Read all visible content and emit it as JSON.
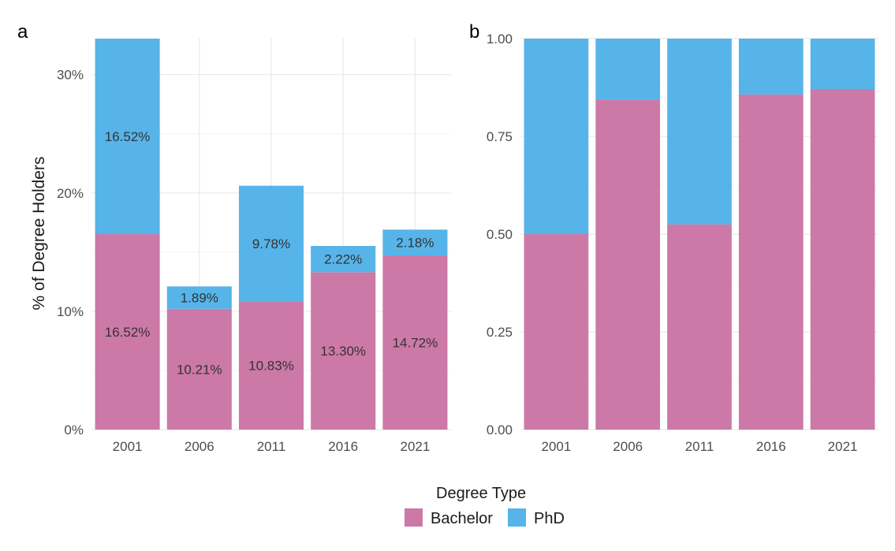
{
  "chart_data": [
    {
      "panel": "a",
      "type": "bar",
      "stacked": true,
      "categories": [
        "2001",
        "2006",
        "2011",
        "2016",
        "2021"
      ],
      "series": [
        {
          "name": "Bachelor",
          "values": [
            16.52,
            10.21,
            10.83,
            13.3,
            14.72
          ],
          "labels": [
            "16.52%",
            "10.21%",
            "10.83%",
            "13.30%",
            "14.72%"
          ]
        },
        {
          "name": "PhD",
          "values": [
            16.52,
            1.89,
            9.78,
            2.22,
            2.18
          ],
          "labels": [
            "16.52%",
            "1.89%",
            "9.78%",
            "2.22%",
            "2.18%"
          ]
        }
      ],
      "ylabel": "% of Degree Holders",
      "ylim": [
        0,
        33.04
      ],
      "yticks": [
        0,
        10,
        20,
        30
      ],
      "ytick_labels": [
        "0%",
        "10%",
        "20%",
        "30%"
      ],
      "grid": true
    },
    {
      "panel": "b",
      "type": "bar",
      "stacked": true,
      "normalized": true,
      "categories": [
        "2001",
        "2006",
        "2011",
        "2016",
        "2021"
      ],
      "series": [
        {
          "name": "Bachelor",
          "values": [
            0.5,
            0.844,
            0.525,
            0.857,
            0.871
          ]
        },
        {
          "name": "PhD",
          "values": [
            0.5,
            0.156,
            0.475,
            0.143,
            0.129
          ]
        }
      ],
      "ylim": [
        0,
        1
      ],
      "yticks": [
        0,
        0.25,
        0.5,
        0.75,
        1
      ],
      "ytick_labels": [
        "0.00",
        "0.25",
        "0.50",
        "0.75",
        "1.00"
      ],
      "grid": true
    }
  ],
  "legend": {
    "title": "Degree Type",
    "position": "bottom",
    "items": [
      {
        "label": "Bachelor",
        "color": "#CC79A7"
      },
      {
        "label": "PhD",
        "color": "#56B4E9"
      }
    ]
  },
  "colors": {
    "Bachelor": "#CC79A7",
    "PhD": "#56B4E9"
  }
}
